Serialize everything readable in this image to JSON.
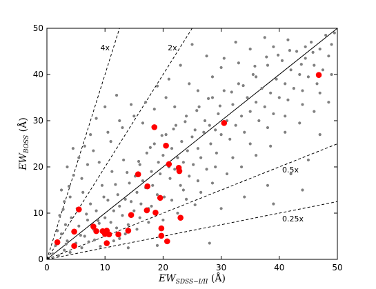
{
  "chart_data": {
    "type": "scatter",
    "title": "",
    "xlabel": {
      "main": "EW",
      "sub": "SDSS−I/II",
      "unit": " (Å)"
    },
    "ylabel": {
      "main": "EW",
      "sub": "BOSS",
      "unit": " (Å)"
    },
    "xlim": [
      0,
      50
    ],
    "ylim": [
      0,
      50
    ],
    "x_ticks": [
      0,
      10,
      20,
      30,
      40,
      50
    ],
    "y_ticks": [
      0,
      10,
      20,
      30,
      40,
      50
    ],
    "grid": false,
    "reference_lines": [
      {
        "slope": 4,
        "label": "4x",
        "label_at": [
          9.2,
          45.2
        ],
        "style": "dashed"
      },
      {
        "slope": 2,
        "label": "2x",
        "label_at": [
          20.8,
          45.2
        ],
        "style": "dashed"
      },
      {
        "slope": 1,
        "label": "",
        "style": "solid"
      },
      {
        "slope": 0.5,
        "label": "0.5x",
        "label_at": [
          40.5,
          18.8
        ],
        "style": "dashed"
      },
      {
        "slope": 0.25,
        "label": "0.25x",
        "label_at": [
          40.5,
          8.2
        ],
        "style": "dashed"
      }
    ],
    "series": [
      {
        "role": "background",
        "color": "#808080",
        "marker_size": "small",
        "points": [
          [
            1.0,
            1.2
          ],
          [
            1.5,
            3.0
          ],
          [
            2.0,
            0.8
          ],
          [
            2.5,
            5.5
          ],
          [
            3.0,
            2.0
          ],
          [
            3.2,
            7.5
          ],
          [
            3.5,
            4.0
          ],
          [
            4.0,
            1.5
          ],
          [
            4.2,
            9.0
          ],
          [
            4.5,
            6.0
          ],
          [
            5.0,
            3.5
          ],
          [
            5.2,
            11.0
          ],
          [
            5.5,
            7.2
          ],
          [
            6.0,
            2.5
          ],
          [
            6.2,
            14.5
          ],
          [
            6.5,
            5.0
          ],
          [
            7.0,
            8.5
          ],
          [
            7.2,
            3.8
          ],
          [
            7.5,
            12.0
          ],
          [
            8.0,
            6.5
          ],
          [
            8.2,
            4.2
          ],
          [
            8.5,
            10.5
          ],
          [
            9.0,
            7.8
          ],
          [
            9.2,
            2.8
          ],
          [
            9.5,
            16.0
          ],
          [
            10.0,
            9.0
          ],
          [
            10.2,
            5.5
          ],
          [
            10.5,
            12.8
          ],
          [
            11.0,
            8.0
          ],
          [
            11.2,
            19.0
          ],
          [
            11.5,
            10.5
          ],
          [
            12.0,
            6.8
          ],
          [
            12.2,
            14.0
          ],
          [
            12.5,
            11.5
          ],
          [
            13.0,
            9.5
          ],
          [
            13.2,
            21.5
          ],
          [
            13.5,
            13.0
          ],
          [
            14.0,
            7.5
          ],
          [
            14.2,
            16.5
          ],
          [
            14.5,
            12.5
          ],
          [
            15.0,
            10.5
          ],
          [
            15.2,
            18.0
          ],
          [
            15.5,
            14.5
          ],
          [
            16.0,
            20.5
          ],
          [
            16.2,
            12.0
          ],
          [
            16.5,
            17.0
          ],
          [
            17.0,
            15.5
          ],
          [
            17.2,
            23.0
          ],
          [
            17.5,
            11.0
          ],
          [
            18.0,
            19.0
          ],
          [
            18.2,
            16.0
          ],
          [
            18.5,
            25.0
          ],
          [
            19.0,
            14.0
          ],
          [
            19.2,
            21.0
          ],
          [
            19.5,
            18.5
          ],
          [
            20.0,
            22.5
          ],
          [
            20.2,
            13.5
          ],
          [
            20.5,
            27.0
          ],
          [
            21.0,
            20.0
          ],
          [
            21.2,
            17.5
          ],
          [
            21.5,
            24.0
          ],
          [
            22.0,
            19.5
          ],
          [
            22.2,
            29.0
          ],
          [
            22.5,
            22.0
          ],
          [
            23.0,
            16.0
          ],
          [
            23.2,
            25.5
          ],
          [
            23.5,
            21.0
          ],
          [
            24.0,
            31.0
          ],
          [
            24.2,
            23.5
          ],
          [
            24.5,
            18.0
          ],
          [
            25.0,
            26.5
          ],
          [
            25.2,
            20.5
          ],
          [
            25.5,
            28.0
          ],
          [
            26.0,
            24.0
          ],
          [
            26.2,
            33.0
          ],
          [
            26.5,
            22.0
          ],
          [
            27.0,
            27.5
          ],
          [
            27.2,
            30.0
          ],
          [
            27.5,
            19.5
          ],
          [
            28.0,
            29.0
          ],
          [
            28.2,
            25.0
          ],
          [
            28.5,
            35.0
          ],
          [
            29.0,
            28.0
          ],
          [
            29.2,
            23.0
          ],
          [
            29.5,
            31.5
          ],
          [
            30.0,
            27.0
          ],
          [
            30.5,
            36.5
          ],
          [
            31.0,
            30.0
          ],
          [
            31.5,
            26.0
          ],
          [
            32.0,
            33.5
          ],
          [
            32.5,
            29.0
          ],
          [
            33.0,
            38.0
          ],
          [
            33.5,
            31.0
          ],
          [
            34.0,
            27.5
          ],
          [
            34.5,
            35.0
          ],
          [
            35.0,
            32.0
          ],
          [
            35.5,
            40.0
          ],
          [
            36.0,
            34.0
          ],
          [
            36.5,
            30.0
          ],
          [
            37.0,
            37.0
          ],
          [
            37.5,
            33.0
          ],
          [
            38.0,
            42.0
          ],
          [
            38.5,
            36.0
          ],
          [
            39.0,
            31.5
          ],
          [
            39.5,
            39.0
          ],
          [
            40.0,
            35.0
          ],
          [
            40.5,
            43.0
          ],
          [
            41.0,
            38.0
          ],
          [
            41.5,
            34.5
          ],
          [
            42.0,
            41.0
          ],
          [
            42.5,
            37.0
          ],
          [
            43.0,
            45.0
          ],
          [
            43.5,
            40.0
          ],
          [
            44.0,
            36.5
          ],
          [
            44.5,
            43.5
          ],
          [
            45.0,
            39.5
          ],
          [
            45.5,
            47.0
          ],
          [
            46.0,
            42.0
          ],
          [
            46.5,
            38.0
          ],
          [
            47.0,
            45.5
          ],
          [
            47.5,
            41.0
          ],
          [
            48.0,
            48.5
          ],
          [
            48.5,
            44.0
          ],
          [
            49.0,
            46.5
          ],
          [
            49.5,
            49.0
          ],
          [
            2.2,
            9.5
          ],
          [
            3.0,
            12.5
          ],
          [
            3.8,
            15.8
          ],
          [
            4.6,
            18.2
          ],
          [
            5.5,
            22.0
          ],
          [
            6.5,
            24.5
          ],
          [
            1.8,
            6.2
          ],
          [
            2.8,
            10.8
          ],
          [
            4.0,
            13.5
          ],
          [
            7.5,
            27.0
          ],
          [
            8.5,
            30.5
          ],
          [
            10.0,
            33.0
          ],
          [
            12.0,
            35.5
          ],
          [
            9.0,
            21.0
          ],
          [
            11.0,
            25.5
          ],
          [
            13.0,
            28.5
          ],
          [
            15.0,
            31.0
          ],
          [
            17.0,
            34.0
          ],
          [
            19.0,
            37.5
          ],
          [
            21.0,
            39.0
          ],
          [
            23.0,
            42.0
          ],
          [
            25.0,
            46.5
          ],
          [
            27.5,
            44.0
          ],
          [
            30.0,
            41.5
          ],
          [
            32.5,
            47.0
          ],
          [
            35.0,
            45.5
          ],
          [
            37.5,
            48.0
          ],
          [
            24.0,
            13.0
          ],
          [
            26.5,
            14.5
          ],
          [
            28.5,
            16.5
          ],
          [
            31.0,
            18.5
          ],
          [
            33.5,
            20.0
          ],
          [
            36.0,
            22.5
          ],
          [
            38.5,
            24.5
          ],
          [
            41.0,
            27.5
          ],
          [
            43.5,
            29.5
          ],
          [
            46.0,
            32.0
          ],
          [
            48.5,
            34.0
          ],
          [
            30.0,
            11.0
          ],
          [
            34.0,
            13.5
          ],
          [
            38.0,
            16.0
          ],
          [
            42.0,
            18.5
          ],
          [
            45.0,
            21.5
          ],
          [
            20.0,
            8.5
          ],
          [
            22.5,
            10.0
          ],
          [
            25.5,
            11.8
          ],
          [
            28.0,
            3.5
          ],
          [
            39.0,
            12.0
          ],
          [
            44.0,
            15.0
          ],
          [
            47.0,
            27.0
          ],
          [
            15.5,
            6.5
          ],
          [
            17.5,
            8.0
          ],
          [
            19.0,
            3.0
          ],
          [
            12.5,
            4.5
          ],
          [
            14.0,
            2.5
          ],
          [
            2.5,
            15.0
          ],
          [
            4.5,
            24.0
          ],
          [
            3.5,
            20.0
          ],
          [
            6.0,
            17.5
          ],
          [
            7.0,
            20.5
          ],
          [
            8.0,
            23.5
          ],
          [
            10.5,
            27.5
          ],
          [
            12.5,
            30.0
          ],
          [
            14.5,
            33.5
          ],
          [
            16.5,
            29.5
          ],
          [
            18.5,
            32.5
          ],
          [
            20.5,
            35.0
          ],
          [
            22.0,
            33.0
          ],
          [
            24.5,
            38.0
          ],
          [
            26.0,
            36.5
          ],
          [
            28.5,
            39.5
          ],
          [
            30.5,
            43.5
          ],
          [
            33.0,
            42.5
          ],
          [
            36.0,
            39.5
          ],
          [
            39.0,
            46.0
          ],
          [
            41.5,
            47.5
          ],
          [
            44.5,
            46.0
          ],
          [
            11.5,
            4.0
          ],
          [
            13.5,
            5.5
          ],
          [
            16.0,
            9.0
          ],
          [
            18.0,
            11.5
          ],
          [
            21.5,
            12.8
          ],
          [
            23.5,
            15.0
          ],
          [
            26.0,
            17.0
          ],
          [
            29.0,
            20.0
          ],
          [
            32.0,
            22.0
          ],
          [
            35.0,
            25.0
          ],
          [
            38.0,
            28.5
          ],
          [
            41.0,
            31.0
          ],
          [
            44.0,
            33.5
          ],
          [
            47.0,
            36.0
          ],
          [
            49.0,
            40.0
          ],
          [
            3.3,
            3.3
          ],
          [
            5.8,
            5.2
          ],
          [
            8.8,
            8.4
          ],
          [
            6.8,
            9.8
          ],
          [
            9.8,
            13.5
          ],
          [
            11.8,
            16.2
          ],
          [
            13.8,
            18.8
          ],
          [
            15.8,
            21.2
          ],
          [
            17.8,
            24.2
          ],
          [
            19.8,
            26.8
          ],
          [
            21.8,
            28.2
          ],
          [
            23.8,
            29.8
          ],
          [
            25.8,
            32.2
          ],
          [
            27.8,
            34.8
          ],
          [
            29.8,
            33.2
          ],
          [
            31.8,
            36.2
          ],
          [
            33.8,
            37.6
          ],
          [
            35.8,
            41.8
          ],
          [
            37.8,
            43.8
          ],
          [
            39.8,
            44.2
          ],
          [
            41.8,
            45.2
          ],
          [
            43.8,
            42.2
          ],
          [
            45.8,
            44.8
          ]
        ]
      },
      {
        "role": "highlight",
        "color": "#ff0000",
        "marker_size": "large",
        "points": [
          [
            1.8,
            3.7
          ],
          [
            4.7,
            2.9
          ],
          [
            4.7,
            6.0
          ],
          [
            5.5,
            10.8
          ],
          [
            8.0,
            7.1
          ],
          [
            8.5,
            6.1
          ],
          [
            9.6,
            6.1
          ],
          [
            10.0,
            5.5
          ],
          [
            10.3,
            6.2
          ],
          [
            10.3,
            3.5
          ],
          [
            10.7,
            5.4
          ],
          [
            12.3,
            5.4
          ],
          [
            14.0,
            6.2
          ],
          [
            14.5,
            9.6
          ],
          [
            15.7,
            18.4
          ],
          [
            17.2,
            10.6
          ],
          [
            17.3,
            15.8
          ],
          [
            18.5,
            28.6
          ],
          [
            18.7,
            10.1
          ],
          [
            19.5,
            13.3
          ],
          [
            19.7,
            6.7
          ],
          [
            19.7,
            5.1
          ],
          [
            20.5,
            24.6
          ],
          [
            20.7,
            3.9
          ],
          [
            21.0,
            20.6
          ],
          [
            22.7,
            19.8
          ],
          [
            22.8,
            19.1
          ],
          [
            23.0,
            9.0
          ],
          [
            30.5,
            29.5
          ],
          [
            46.8,
            39.9
          ]
        ]
      }
    ]
  }
}
